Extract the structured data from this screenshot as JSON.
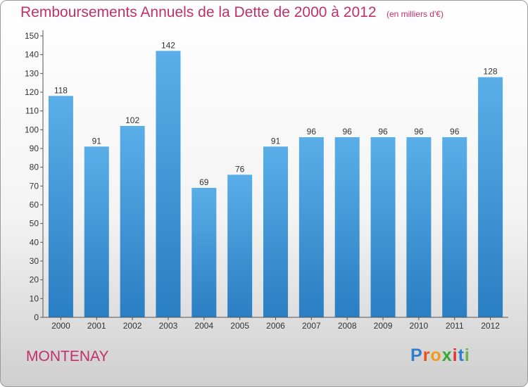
{
  "title": "Remboursements Annuels de la Dette de 2000 à 2012",
  "unit_note": "(en milliers d'€)",
  "location": "MONTENAY",
  "logo": {
    "text": "Proxiti",
    "letter_colors": [
      "#2f7fd0",
      "#e8501a",
      "#f29a1e",
      "#3aaa35",
      "#e3342f",
      "#2f7fd0",
      "#6bb34b"
    ]
  },
  "colors": {
    "title": "#c0306a",
    "bar_top": "#5aaee8",
    "bar_bottom": "#2a7ec2"
  },
  "chart_data": {
    "type": "bar",
    "title": "Remboursements Annuels de la Dette de 2000 à 2012",
    "subtitle": "(en milliers d'€)",
    "categories": [
      "2000",
      "2001",
      "2002",
      "2003",
      "2004",
      "2005",
      "2006",
      "2007",
      "2008",
      "2009",
      "2010",
      "2011",
      "2012"
    ],
    "values": [
      118,
      91,
      102,
      142,
      69,
      76,
      91,
      96,
      96,
      96,
      96,
      96,
      128
    ],
    "ylim": [
      0,
      150
    ],
    "yticks": [
      0,
      10,
      20,
      30,
      40,
      50,
      60,
      70,
      80,
      90,
      100,
      110,
      120,
      130,
      140,
      150
    ],
    "grid": false,
    "legend": "none",
    "data_labels": true
  }
}
